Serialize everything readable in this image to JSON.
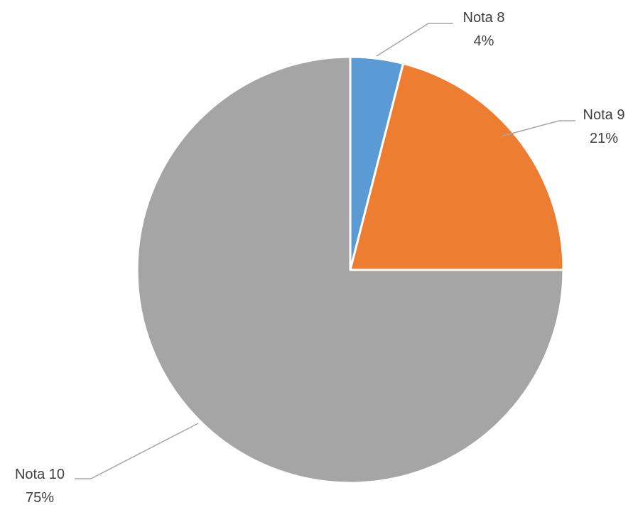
{
  "chart_data": {
    "type": "pie",
    "start_angle_deg": 0,
    "direction": "clockwise",
    "legend": "none",
    "slices": [
      {
        "category": "Nota 8",
        "percent_label": "4%",
        "value": 4,
        "color": "#5b9bd5"
      },
      {
        "category": "Nota 9",
        "percent_label": "21%",
        "value": 21,
        "color": "#ed7d31"
      },
      {
        "category": "Nota 10",
        "percent_label": "75%",
        "value": 75,
        "color": "#a5a5a5"
      }
    ]
  }
}
